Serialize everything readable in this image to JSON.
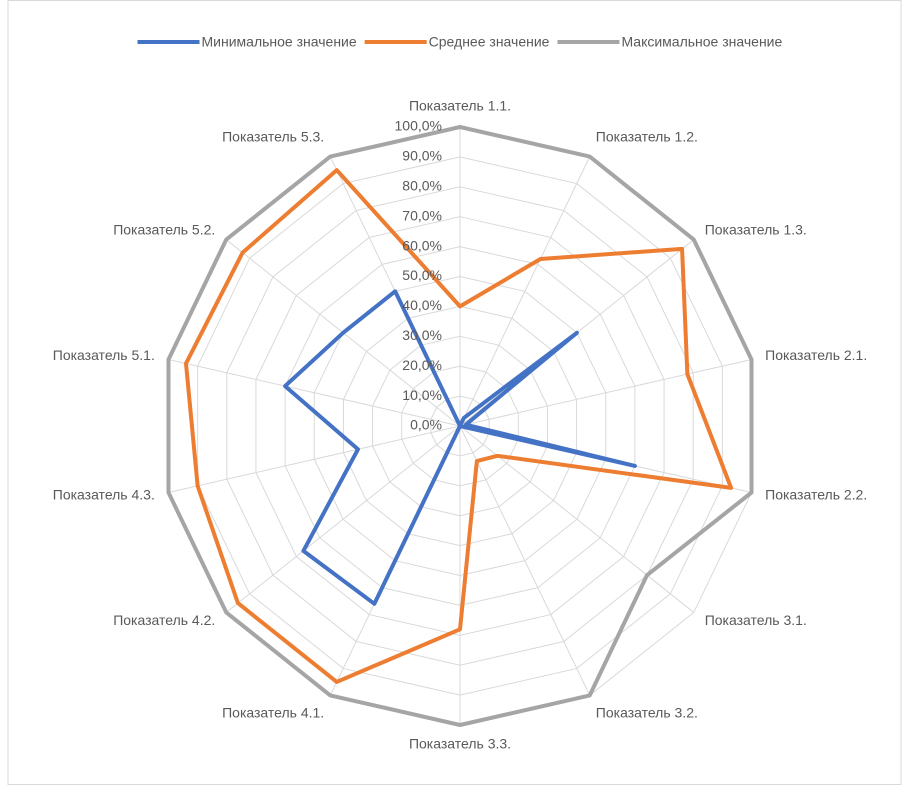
{
  "chart_data": {
    "type": "radar",
    "categories": [
      "Показатель 1.1.",
      "Показатель 1.2.",
      "Показатель 1.3.",
      "Показатель 2.1.",
      "Показатель 2.2.",
      "Показатель 3.1.",
      "Показатель 3.2.",
      "Показатель 3.3.",
      "Показатель 4.1.",
      "Показатель 4.2.",
      "Показатель 4.3.",
      "Показатель 5.1.",
      "Показатель 5.2.",
      "Показатель 5.3."
    ],
    "series": [
      {
        "name": "Минимальное значение",
        "color": "#4472c4",
        "values": [
          0,
          3,
          50,
          2,
          60,
          0,
          0,
          0,
          66,
          67,
          35,
          60,
          50,
          50
        ]
      },
      {
        "name": "Среднее значение",
        "color": "#ed7d31",
        "values": [
          40,
          62,
          95,
          78,
          93,
          16,
          13,
          68,
          95,
          95,
          90,
          94,
          93,
          95
        ]
      },
      {
        "name": "Максимальное значение",
        "color": "#a5a5a5",
        "values": [
          100,
          100,
          100,
          100,
          100,
          80,
          100,
          100,
          100,
          100,
          100,
          100,
          100,
          100
        ]
      }
    ],
    "ylim": [
      0,
      100
    ],
    "yticks": [
      {
        "value": 0,
        "label": "0,0%"
      },
      {
        "value": 10,
        "label": "10,0%"
      },
      {
        "value": 20,
        "label": "20,0%"
      },
      {
        "value": 30,
        "label": "30,0%"
      },
      {
        "value": 40,
        "label": "40,0%"
      },
      {
        "value": 50,
        "label": "50,0%"
      },
      {
        "value": 60,
        "label": "60,0%"
      },
      {
        "value": 70,
        "label": "70,0%"
      },
      {
        "value": 80,
        "label": "80,0%"
      },
      {
        "value": 90,
        "label": "90,0%"
      },
      {
        "value": 100,
        "label": "100,0%"
      }
    ],
    "grid": true,
    "legend": "top"
  }
}
